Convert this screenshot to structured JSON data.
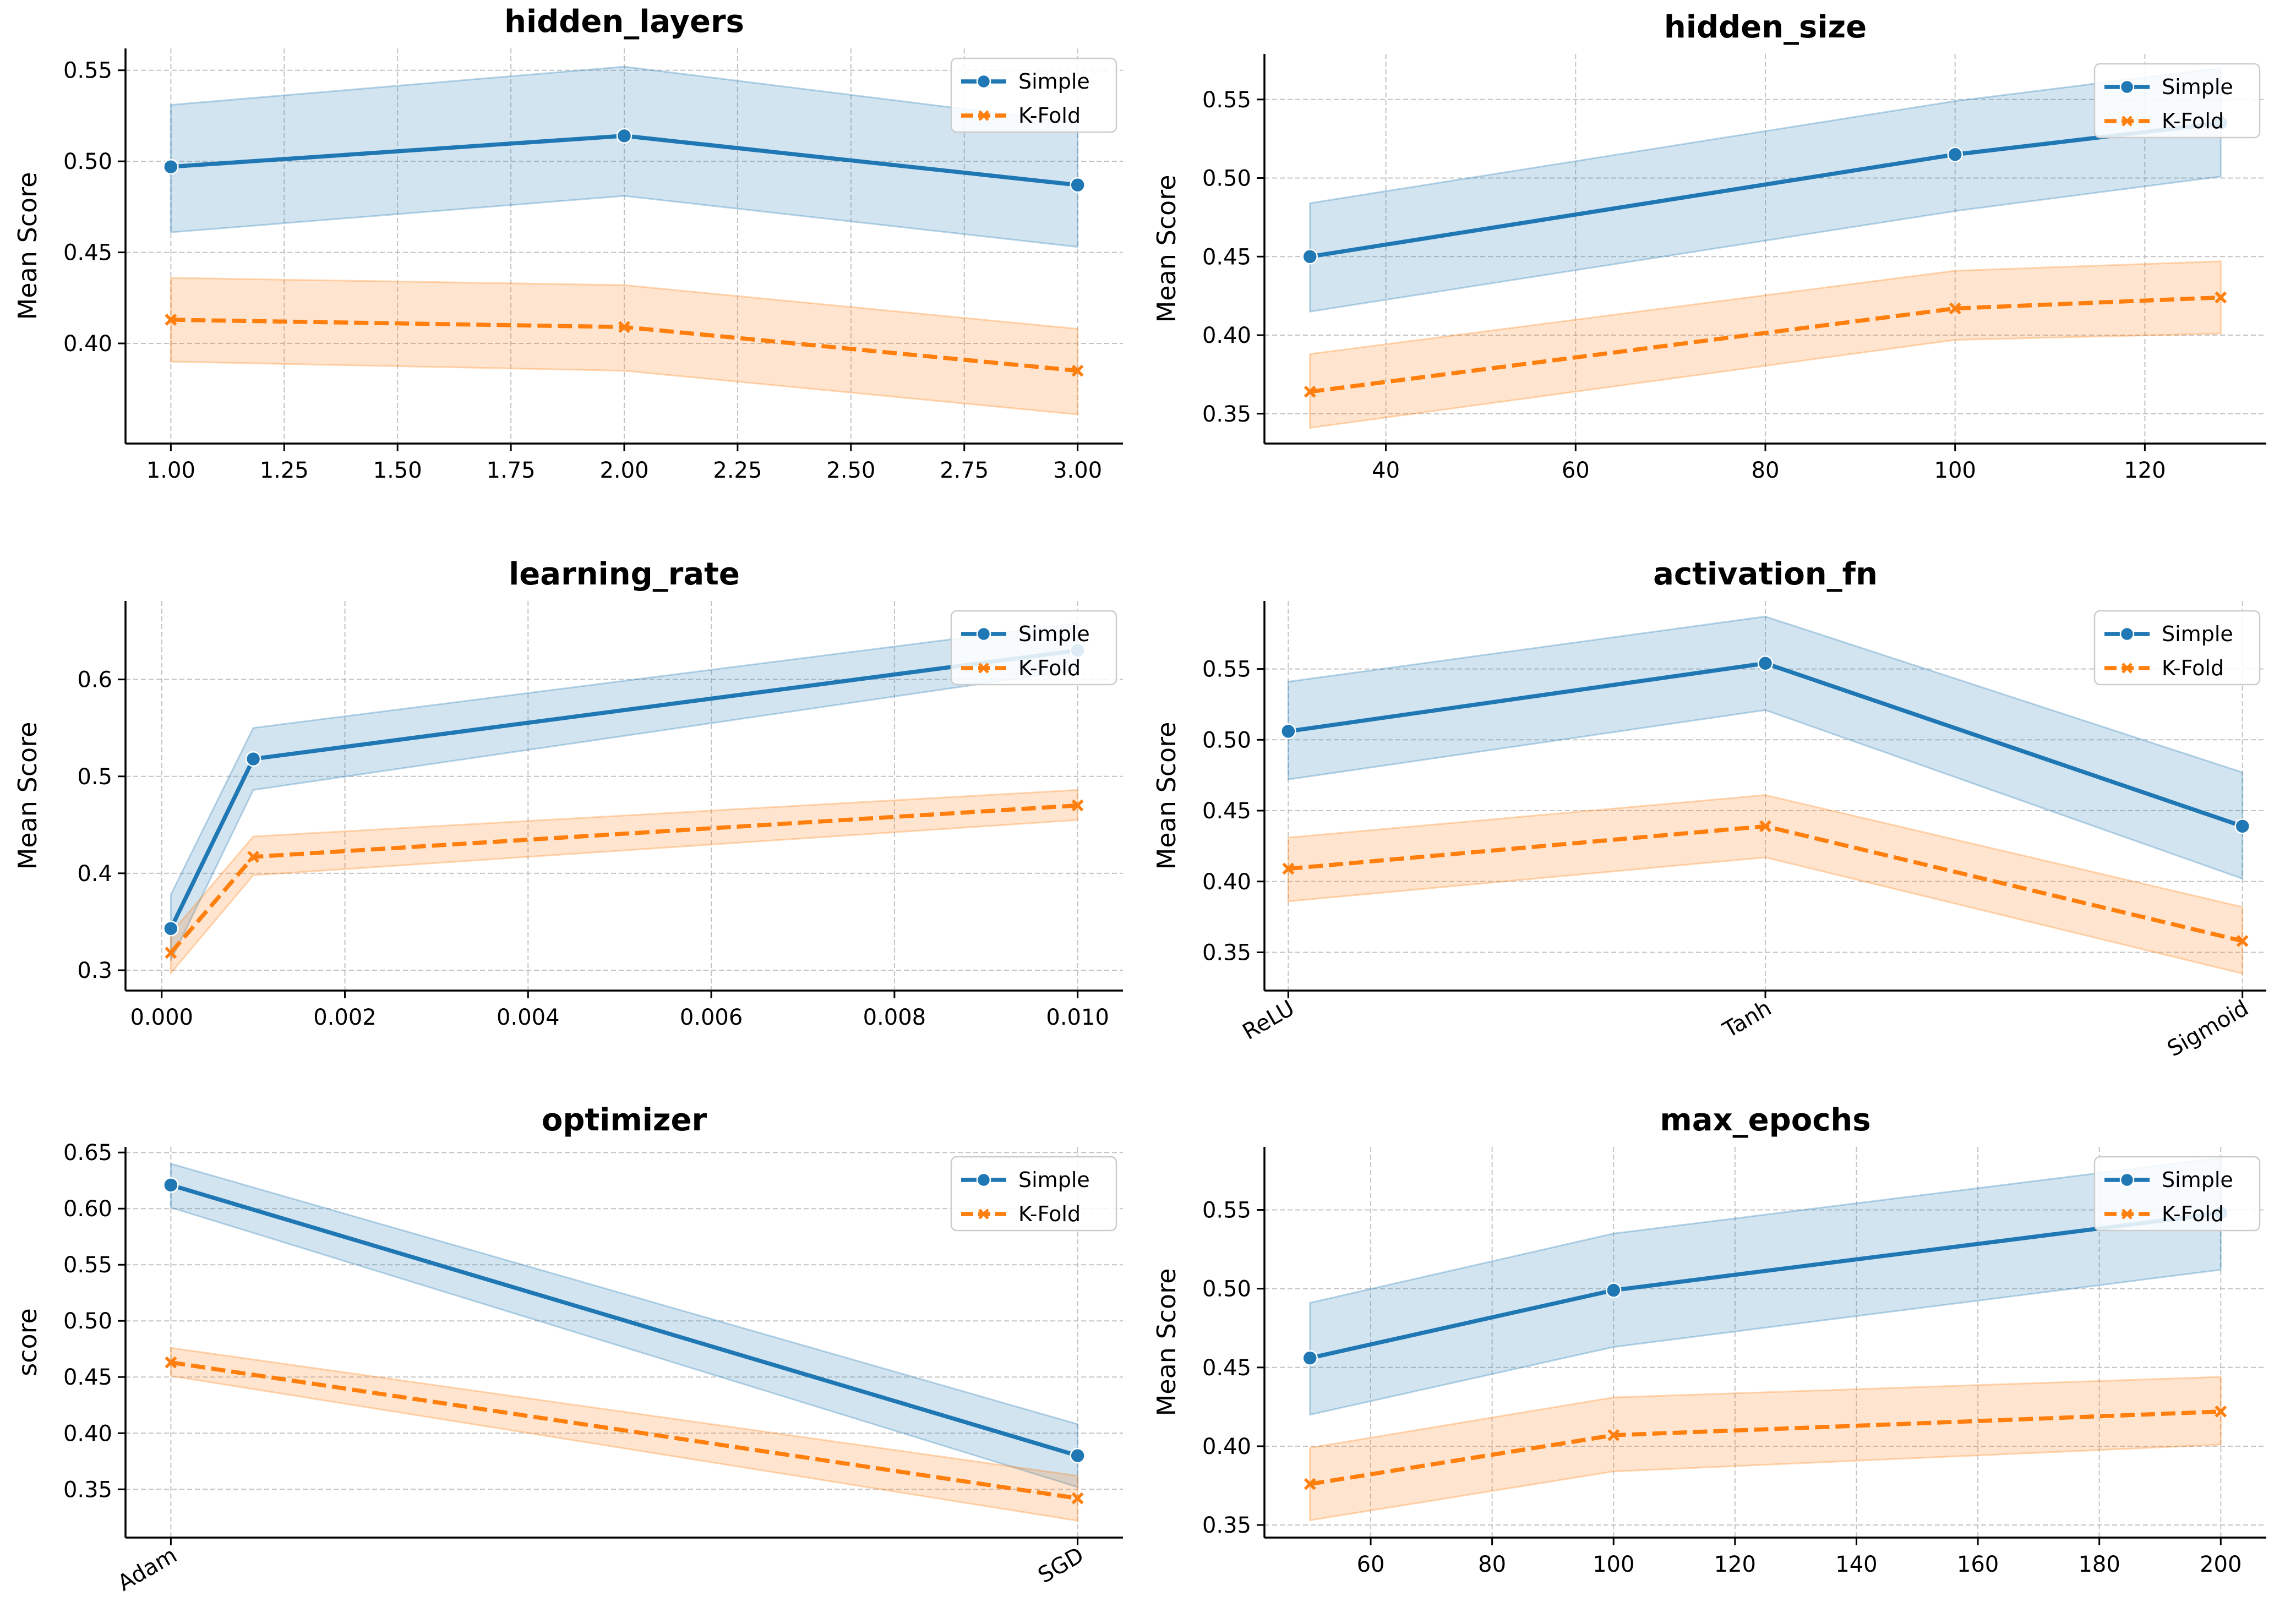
{
  "legend_entries": [
    "Simple",
    "K-Fold"
  ],
  "colors": {
    "simple": "#1f77b4",
    "kfold": "#ff7f0e"
  },
  "chart_data": [
    {
      "type": "line",
      "title": "hidden_layers",
      "xlabel": "",
      "ylabel": "Mean Score",
      "x_type": "numeric",
      "x": [
        1,
        2,
        3
      ],
      "xlim": [
        0.9,
        3.1
      ],
      "ylim": [
        0.345,
        0.562
      ],
      "xticks": [
        1.0,
        1.25,
        1.5,
        1.75,
        2.0,
        2.25,
        2.5,
        2.75,
        3.0
      ],
      "xtick_labels": [
        "1.00",
        "1.25",
        "1.50",
        "1.75",
        "2.00",
        "2.25",
        "2.50",
        "2.75",
        "3.00"
      ],
      "yticks": [
        0.4,
        0.45,
        0.5,
        0.55
      ],
      "ytick_labels": [
        "0.40",
        "0.45",
        "0.50",
        "0.55"
      ],
      "grid": true,
      "legend": "top-right",
      "series": [
        {
          "name": "Simple",
          "values": [
            0.497,
            0.514,
            0.487
          ],
          "lower": [
            0.461,
            0.481,
            0.453
          ],
          "upper": [
            0.531,
            0.552,
            0.521
          ]
        },
        {
          "name": "K-Fold",
          "values": [
            0.413,
            0.409,
            0.385
          ],
          "lower": [
            0.39,
            0.385,
            0.361
          ],
          "upper": [
            0.436,
            0.432,
            0.408
          ]
        }
      ]
    },
    {
      "type": "line",
      "title": "hidden_size",
      "xlabel": "",
      "ylabel": "Mean Score",
      "x_type": "numeric",
      "x": [
        32,
        100,
        128
      ],
      "xlim": [
        27.2,
        132.8
      ],
      "ylim": [
        0.331,
        0.579
      ],
      "xticks": [
        40,
        60,
        80,
        100,
        120
      ],
      "xtick_labels": [
        "40",
        "60",
        "80",
        "100",
        "120"
      ],
      "yticks": [
        0.35,
        0.4,
        0.45,
        0.5,
        0.55
      ],
      "ytick_labels": [
        "0.35",
        "0.40",
        "0.45",
        "0.50",
        "0.55"
      ],
      "grid": true,
      "legend": "top-right",
      "series": [
        {
          "name": "Simple",
          "values": [
            0.45,
            0.515,
            0.535
          ],
          "lower": [
            0.415,
            0.479,
            0.501
          ],
          "upper": [
            0.484,
            0.549,
            0.57
          ]
        },
        {
          "name": "K-Fold",
          "values": [
            0.364,
            0.417,
            0.424
          ],
          "lower": [
            0.341,
            0.397,
            0.401
          ],
          "upper": [
            0.388,
            0.441,
            0.447
          ]
        }
      ]
    },
    {
      "type": "line",
      "title": "learning_rate",
      "xlabel": "",
      "ylabel": "Mean Score",
      "x_type": "numeric",
      "x": [
        0.0001,
        0.001,
        0.01
      ],
      "xlim": [
        -0.000395,
        0.010495
      ],
      "ylim": [
        0.279,
        0.681
      ],
      "xticks": [
        0.0,
        0.002,
        0.004,
        0.006,
        0.008,
        0.01
      ],
      "xtick_labels": [
        "0.000",
        "0.002",
        "0.004",
        "0.006",
        "0.008",
        "0.010"
      ],
      "yticks": [
        0.3,
        0.4,
        0.5,
        0.6
      ],
      "ytick_labels": [
        "0.3",
        "0.4",
        "0.5",
        "0.6"
      ],
      "grid": true,
      "legend": "top-right",
      "series": [
        {
          "name": "Simple",
          "values": [
            0.343,
            0.518,
            0.63
          ],
          "lower": [
            0.31,
            0.486,
            0.61
          ],
          "upper": [
            0.378,
            0.55,
            0.658
          ]
        },
        {
          "name": "K-Fold",
          "values": [
            0.318,
            0.417,
            0.47
          ],
          "lower": [
            0.297,
            0.398,
            0.455
          ],
          "upper": [
            0.338,
            0.438,
            0.486
          ]
        }
      ]
    },
    {
      "type": "line",
      "title": "activation_fn",
      "xlabel": "",
      "ylabel": "Mean Score",
      "x_type": "category",
      "categories": [
        "ReLU",
        "Tanh",
        "Sigmoid"
      ],
      "xlim": [
        -0.05,
        2.05
      ],
      "ylim": [
        0.323,
        0.598
      ],
      "rotate_xticks": true,
      "yticks": [
        0.35,
        0.4,
        0.45,
        0.5,
        0.55
      ],
      "ytick_labels": [
        "0.35",
        "0.40",
        "0.45",
        "0.50",
        "0.55"
      ],
      "grid": true,
      "legend": "top-right",
      "series": [
        {
          "name": "Simple",
          "values": [
            0.506,
            0.554,
            0.439
          ],
          "lower": [
            0.472,
            0.521,
            0.402
          ],
          "upper": [
            0.541,
            0.587,
            0.477
          ]
        },
        {
          "name": "K-Fold",
          "values": [
            0.409,
            0.439,
            0.358
          ],
          "lower": [
            0.386,
            0.417,
            0.335
          ],
          "upper": [
            0.431,
            0.461,
            0.382
          ]
        }
      ]
    },
    {
      "type": "line",
      "title": "optimizer",
      "xlabel": "",
      "ylabel": "score",
      "x_type": "category",
      "categories": [
        "Adam",
        "SGD"
      ],
      "xlim": [
        -0.05,
        1.05
      ],
      "ylim": [
        0.307,
        0.655
      ],
      "rotate_xticks": true,
      "yticks": [
        0.35,
        0.4,
        0.45,
        0.5,
        0.55,
        0.6,
        0.65
      ],
      "ytick_labels": [
        "0.35",
        "0.40",
        "0.45",
        "0.50",
        "0.55",
        "0.60",
        "0.65"
      ],
      "grid": true,
      "legend": "top-right",
      "series": [
        {
          "name": "Simple",
          "values": [
            0.621,
            0.38
          ],
          "lower": [
            0.601,
            0.352
          ],
          "upper": [
            0.64,
            0.408
          ]
        },
        {
          "name": "K-Fold",
          "values": [
            0.463,
            0.342
          ],
          "lower": [
            0.451,
            0.322
          ],
          "upper": [
            0.476,
            0.362
          ]
        }
      ]
    },
    {
      "type": "line",
      "title": "max_epochs",
      "xlabel": "",
      "ylabel": "Mean Score",
      "x_type": "numeric",
      "x": [
        50,
        100,
        200
      ],
      "xlim": [
        42.5,
        207.5
      ],
      "ylim": [
        0.342,
        0.59
      ],
      "xticks": [
        60,
        80,
        100,
        120,
        140,
        160,
        180,
        200
      ],
      "xtick_labels": [
        "60",
        "80",
        "100",
        "120",
        "140",
        "160",
        "180",
        "200"
      ],
      "yticks": [
        0.35,
        0.4,
        0.45,
        0.5,
        0.55
      ],
      "ytick_labels": [
        "0.35",
        "0.40",
        "0.45",
        "0.50",
        "0.55"
      ],
      "grid": true,
      "legend": "top-right",
      "series": [
        {
          "name": "Simple",
          "values": [
            0.456,
            0.499,
            0.548
          ],
          "lower": [
            0.42,
            0.463,
            0.512
          ],
          "upper": [
            0.491,
            0.535,
            0.583
          ]
        },
        {
          "name": "K-Fold",
          "values": [
            0.376,
            0.407,
            0.422
          ],
          "lower": [
            0.353,
            0.384,
            0.401
          ],
          "upper": [
            0.399,
            0.431,
            0.444
          ]
        }
      ]
    }
  ]
}
